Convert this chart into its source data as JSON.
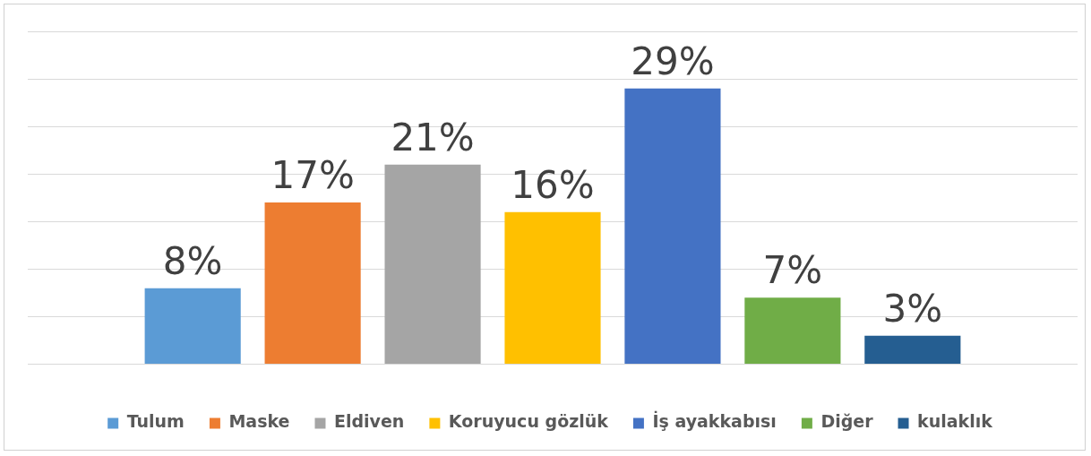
{
  "chart_data": {
    "type": "bar",
    "categories": [
      null
    ],
    "series": [
      {
        "name": "Tulum",
        "color": "#5b9bd5",
        "values": [
          8
        ],
        "value_labels": [
          "8%"
        ]
      },
      {
        "name": "Maske",
        "color": "#ed7d31",
        "values": [
          17
        ],
        "value_labels": [
          "17%"
        ]
      },
      {
        "name": "Eldiven",
        "color": "#a5a5a5",
        "values": [
          21
        ],
        "value_labels": [
          "21%"
        ]
      },
      {
        "name": "Koruyucu gözlük",
        "color": "#ffc000",
        "values": [
          16
        ],
        "value_labels": [
          "16%"
        ]
      },
      {
        "name": "İş ayakkabısı",
        "color": "#4472c4",
        "values": [
          29
        ],
        "value_labels": [
          "29%"
        ]
      },
      {
        "name": "Diğer",
        "color": "#70ad47",
        "values": [
          7
        ],
        "value_labels": [
          "7%"
        ]
      },
      {
        "name": "kulaklık",
        "color": "#255e91",
        "values": [
          3
        ],
        "value_labels": [
          "3%"
        ]
      }
    ],
    "ylim": [
      0,
      35
    ],
    "yticks": [
      {
        "value": 0,
        "label": null
      },
      {
        "value": 5,
        "label": null
      },
      {
        "value": 10,
        "label": null
      },
      {
        "value": 15,
        "label": null
      },
      {
        "value": 20,
        "label": null
      },
      {
        "value": 25,
        "label": null
      },
      {
        "value": 30,
        "label": null
      },
      {
        "value": 35,
        "label": null
      }
    ],
    "grid": "y",
    "legend": "bottom"
  }
}
